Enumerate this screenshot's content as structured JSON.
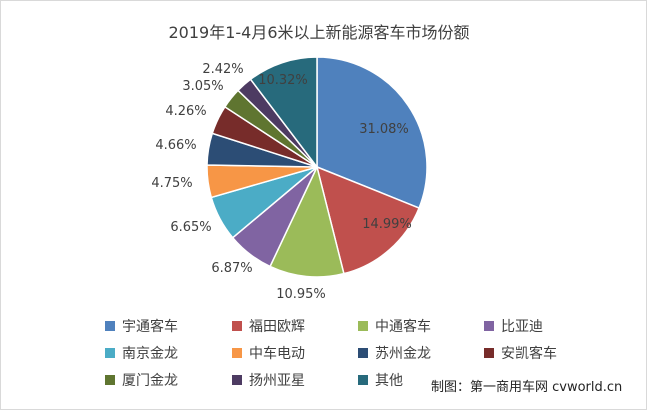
{
  "chart_data": {
    "type": "pie",
    "title": "2019年1-4月6米以上新能源客车市场份额",
    "slices": [
      {
        "name": "宇通客车",
        "value": 31.08,
        "label": "31.08%",
        "color": "#4F81BD"
      },
      {
        "name": "福田欧辉",
        "value": 14.99,
        "label": "14.99%",
        "color": "#C0504D"
      },
      {
        "name": "中通客车",
        "value": 10.95,
        "label": "10.95%",
        "color": "#9BBB59"
      },
      {
        "name": "比亚迪",
        "value": 6.87,
        "label": "6.87%",
        "color": "#8064A2"
      },
      {
        "name": "南京金龙",
        "value": 6.65,
        "label": "6.65%",
        "color": "#4BACC6"
      },
      {
        "name": "中车电动",
        "value": 4.75,
        "label": "4.75%",
        "color": "#F79646"
      },
      {
        "name": "苏州金龙",
        "value": 4.66,
        "label": "4.66%",
        "color": "#2C4D75"
      },
      {
        "name": "安凯客车",
        "value": 4.26,
        "label": "4.26%",
        "color": "#772C2A"
      },
      {
        "name": "厦门金龙",
        "value": 3.05,
        "label": "3.05%",
        "color": "#5F7530"
      },
      {
        "name": "扬州亚星",
        "value": 2.42,
        "label": "2.42%",
        "color": "#4D3B62"
      },
      {
        "name": "其他",
        "value": 10.32,
        "label": "10.32%",
        "color": "#276A7C"
      }
    ],
    "legend_position": "bottom"
  },
  "credit": "制图：第一商用车网 cvworld.cn"
}
